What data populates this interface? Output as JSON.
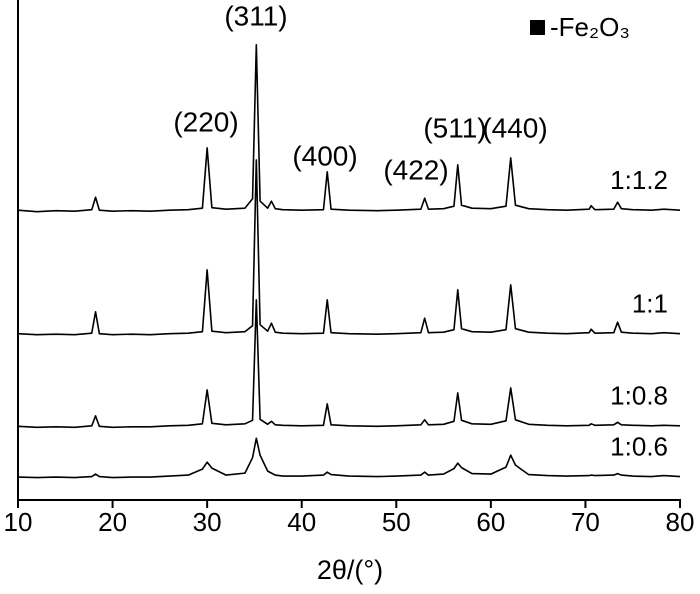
{
  "chart_data": {
    "type": "line",
    "x_label": "2θ/(°)",
    "x": [
      10,
      12,
      14,
      16,
      17.8,
      18.2,
      18.6,
      20,
      22,
      24,
      26,
      28,
      29.5,
      30,
      30.5,
      32,
      34,
      34.8,
      35.2,
      35.6,
      36.4,
      36.8,
      37.2,
      38,
      40,
      42.3,
      42.7,
      43.1,
      45,
      48,
      50,
      52.6,
      53,
      53.4,
      55,
      56.1,
      56.5,
      56.9,
      58,
      60,
      61.6,
      62.1,
      62.6,
      64,
      66,
      68,
      70.4,
      70.6,
      71,
      73,
      73.4,
      73.8,
      75,
      77,
      78.3,
      80
    ],
    "series": [
      {
        "name": "1:1.2",
        "color": "#000000",
        "values": [
          58.2,
          57.9,
          58.1,
          58.0,
          58.3,
          60.8,
          58.2,
          58.0,
          58.1,
          58.0,
          58.2,
          58.3,
          58.6,
          70.7,
          58.7,
          58.4,
          58.6,
          60.5,
          91.4,
          60.0,
          58.6,
          60.0,
          58.5,
          58.3,
          58.2,
          58.3,
          65.9,
          58.4,
          58.2,
          58.1,
          58.2,
          58.4,
          60.6,
          58.4,
          58.5,
          59.0,
          67.3,
          59.2,
          58.6,
          58.5,
          59.0,
          68.7,
          59.2,
          58.5,
          58.3,
          58.2,
          58.4,
          59.1,
          58.3,
          58.4,
          59.8,
          58.5,
          58.3,
          58.2,
          58.4,
          58.2
        ]
      },
      {
        "name": "1:1",
        "color": "#000000",
        "values": [
          33.4,
          33.2,
          33.3,
          33.2,
          33.5,
          37.8,
          33.4,
          33.2,
          33.3,
          33.2,
          33.4,
          33.5,
          33.8,
          46.2,
          33.9,
          33.6,
          33.8,
          35.0,
          68.3,
          35.2,
          33.9,
          35.5,
          33.7,
          33.5,
          33.4,
          33.5,
          40.2,
          33.6,
          33.4,
          33.3,
          33.4,
          33.6,
          36.5,
          33.6,
          33.7,
          34.2,
          42.2,
          34.4,
          33.8,
          33.7,
          34.2,
          43.2,
          34.4,
          33.7,
          33.5,
          33.4,
          33.6,
          34.3,
          33.5,
          33.6,
          35.7,
          33.7,
          33.5,
          33.4,
          33.6,
          33.4
        ]
      },
      {
        "name": "1:0.8",
        "color": "#000000",
        "values": [
          14.8,
          14.6,
          14.7,
          14.6,
          14.9,
          16.9,
          14.8,
          14.6,
          14.7,
          14.7,
          14.9,
          15.0,
          15.3,
          22.1,
          15.4,
          15.1,
          15.3,
          16.0,
          40.2,
          16.2,
          15.2,
          15.8,
          15.1,
          15.0,
          14.9,
          15.0,
          19.3,
          15.1,
          14.9,
          14.8,
          14.9,
          15.1,
          16.1,
          15.1,
          15.2,
          15.8,
          21.5,
          16.0,
          15.3,
          15.2,
          15.9,
          22.5,
          16.1,
          15.2,
          15.0,
          14.9,
          15.0,
          15.3,
          15.0,
          15.1,
          15.6,
          15.1,
          15.0,
          14.9,
          15.0,
          14.9
        ]
      },
      {
        "name": "1:0.6",
        "color": "#000000",
        "values": [
          4.6,
          4.5,
          4.6,
          4.5,
          4.7,
          5.2,
          4.7,
          4.5,
          4.6,
          4.6,
          4.8,
          5.0,
          6.2,
          7.6,
          6.4,
          5.0,
          5.4,
          8.5,
          12.4,
          9.0,
          5.8,
          5.4,
          5.0,
          4.8,
          4.8,
          5.0,
          5.6,
          5.1,
          4.8,
          4.7,
          4.8,
          5.0,
          5.6,
          5.0,
          5.2,
          6.3,
          7.4,
          6.5,
          5.3,
          5.2,
          6.6,
          9.0,
          7.0,
          5.1,
          4.9,
          4.8,
          4.9,
          5.0,
          4.9,
          5.0,
          5.3,
          5.0,
          4.8,
          4.7,
          4.9,
          4.7
        ]
      }
    ],
    "annotations": [
      "(311)",
      "(220)",
      "(400)",
      "(422)",
      "(511)",
      "(440)"
    ],
    "legend_label": "-Fe₂O₃",
    "xlim": [
      10,
      80
    ],
    "xticks": [
      10,
      20,
      30,
      40,
      50,
      60,
      70,
      80
    ],
    "ylim": [
      0,
      100
    ],
    "grid": false
  }
}
